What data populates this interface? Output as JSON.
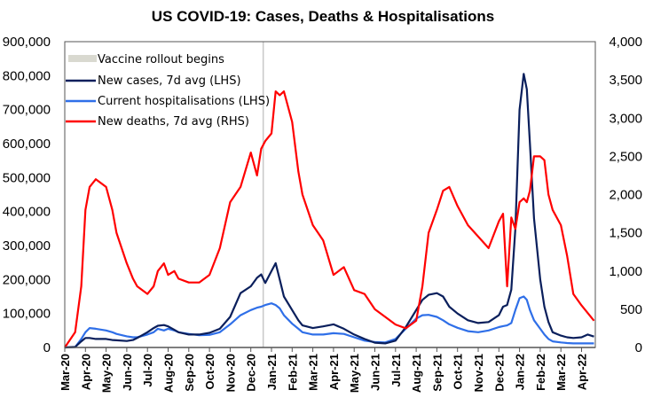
{
  "chart_data": {
    "type": "line",
    "title": "US COVID-19: Cases, Deaths & Hospitalisations",
    "xlabel": "",
    "ylabel_left": "",
    "ylabel_right": "",
    "ylim_left": [
      0,
      900000
    ],
    "ylim_right": [
      0,
      4000
    ],
    "yticks_left": [
      "0",
      "100,000",
      "200,000",
      "300,000",
      "400,000",
      "500,000",
      "600,000",
      "700,000",
      "800,000",
      "900,000"
    ],
    "yticks_left_values": [
      0,
      100000,
      200000,
      300000,
      400000,
      500000,
      600000,
      700000,
      800000,
      900000
    ],
    "yticks_right": [
      "0",
      "500",
      "1,000",
      "1,500",
      "2,000",
      "2,500",
      "3,000",
      "3,500",
      "4,000"
    ],
    "yticks_right_values": [
      0,
      500,
      1000,
      1500,
      2000,
      2500,
      3000,
      3500,
      4000
    ],
    "x_categories": [
      "Mar-20",
      "Apr-20",
      "May-20",
      "Jun-20",
      "Jul-20",
      "Aug-20",
      "Sep-20",
      "Oct-20",
      "Nov-20",
      "Dec-20",
      "Jan-21",
      "Feb-21",
      "Mar-21",
      "Apr-21",
      "May-21",
      "Jun-21",
      "Jul-21",
      "Aug-21",
      "Sep-21",
      "Oct-21",
      "Nov-21",
      "Dec-21",
      "Jan-22",
      "Feb-22",
      "Mar-22",
      "Apr-22"
    ],
    "grid": false,
    "legend_position": "top-left",
    "annotations": [
      {
        "type": "vertical-line",
        "label": "Vaccine rollout begins",
        "x_month_index": 9.6,
        "color": "#c8c8c8"
      }
    ],
    "x_month_index": [
      0,
      0.5,
      0.8,
      1,
      1.2,
      1.5,
      2,
      2.3,
      2.5,
      3,
      3.3,
      3.5,
      4,
      4.3,
      4.5,
      4.8,
      5,
      5.3,
      5.5,
      6,
      6.5,
      7,
      7.5,
      8,
      8.5,
      9,
      9.3,
      9.5,
      9.7,
      10,
      10.2,
      10.4,
      10.6,
      11,
      11.3,
      11.5,
      12,
      12.5,
      13,
      13.5,
      14,
      14.5,
      15,
      15.5,
      16,
      16.5,
      17,
      17.3,
      17.6,
      18,
      18.3,
      18.6,
      19,
      19.5,
      20,
      20.5,
      21,
      21.2,
      21.4,
      21.6,
      21.8,
      22,
      22.2,
      22.35,
      22.5,
      22.7,
      23,
      23.2,
      23.4,
      23.6,
      24,
      24.3,
      24.6,
      25,
      25.3,
      25.6
    ],
    "series": [
      {
        "name": "New cases, 7d avg (LHS)",
        "axis": "left",
        "color": "#0a1f5c",
        "values": [
          0,
          1500,
          18000,
          28000,
          28000,
          25000,
          25000,
          22000,
          21000,
          19000,
          22000,
          28000,
          45000,
          57000,
          64000,
          66000,
          62000,
          52000,
          45000,
          38000,
          38000,
          43000,
          55000,
          90000,
          160000,
          180000,
          205000,
          215000,
          190000,
          225000,
          248000,
          200000,
          150000,
          110000,
          80000,
          65000,
          57000,
          62000,
          68000,
          55000,
          38000,
          25000,
          14000,
          12000,
          20000,
          60000,
          110000,
          140000,
          155000,
          160000,
          150000,
          120000,
          100000,
          80000,
          72000,
          75000,
          95000,
          120000,
          125000,
          170000,
          350000,
          700000,
          805000,
          760000,
          600000,
          380000,
          200000,
          120000,
          75000,
          45000,
          35000,
          30000,
          28000,
          30000,
          38000,
          32000
        ]
      },
      {
        "name": "Current hospitalisations (LHS)",
        "axis": "left",
        "color": "#2f6fe8",
        "values": [
          0,
          1000,
          25000,
          45000,
          57000,
          55000,
          50000,
          45000,
          40000,
          33000,
          30000,
          30000,
          38000,
          45000,
          55000,
          50000,
          55000,
          50000,
          45000,
          40000,
          36000,
          37000,
          45000,
          68000,
          95000,
          110000,
          117000,
          120000,
          125000,
          130000,
          125000,
          115000,
          95000,
          70000,
          55000,
          45000,
          38000,
          38000,
          42000,
          40000,
          30000,
          20000,
          16000,
          15000,
          25000,
          55000,
          85000,
          95000,
          96000,
          90000,
          80000,
          68000,
          58000,
          48000,
          45000,
          50000,
          60000,
          63000,
          65000,
          72000,
          110000,
          145000,
          150000,
          140000,
          110000,
          80000,
          55000,
          38000,
          25000,
          18000,
          15000,
          13000,
          12000,
          12000,
          12000,
          12000
        ]
      },
      {
        "name": "New deaths, 7d avg (RHS)",
        "axis": "right",
        "color": "#ff0000",
        "values": [
          0,
          200,
          800,
          1800,
          2100,
          2200,
          2100,
          1800,
          1500,
          1100,
          900,
          800,
          700,
          800,
          1000,
          1100,
          950,
          1000,
          900,
          850,
          850,
          950,
          1300,
          1900,
          2100,
          2550,
          2250,
          2600,
          2700,
          2800,
          3350,
          3300,
          3350,
          2950,
          2300,
          2000,
          1600,
          1400,
          950,
          1050,
          750,
          700,
          500,
          400,
          300,
          250,
          350,
          800,
          1500,
          1800,
          2050,
          2100,
          1850,
          1600,
          1450,
          1300,
          1650,
          1750,
          800,
          1700,
          1550,
          1900,
          1950,
          1900,
          2050,
          2500,
          2500,
          2450,
          2000,
          1800,
          1600,
          1200,
          700,
          550,
          450,
          350
        ]
      }
    ]
  }
}
